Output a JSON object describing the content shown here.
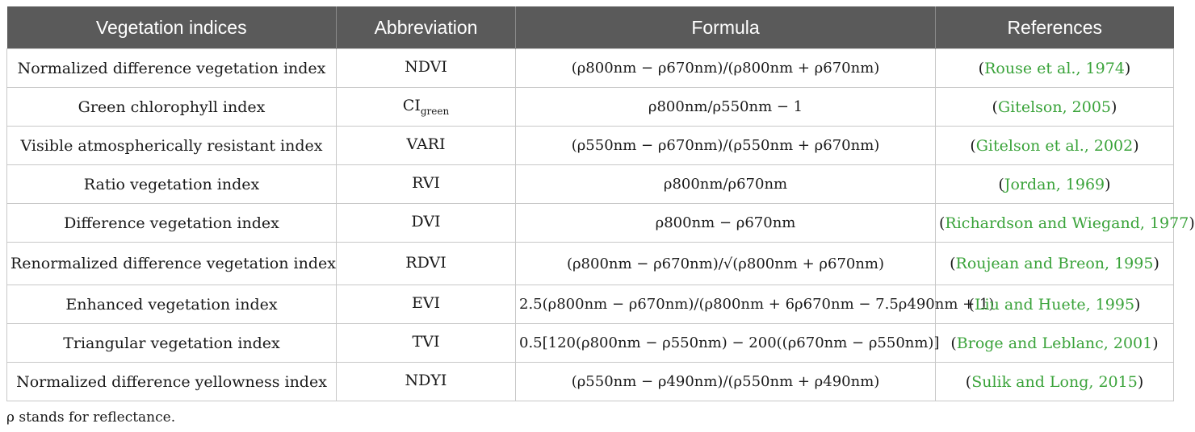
{
  "headers": [
    "Vegetation indices",
    "Abbreviation",
    "Formula",
    "References"
  ],
  "rows": [
    {
      "name": "Normalized difference vegetation index",
      "abbr": "NDVI",
      "abbr_sub": "",
      "formula": "(ρ800nm − ρ670nm)/(ρ800nm + ρ670nm)",
      "ref": "Rouse et al., 1974"
    },
    {
      "name": "Green chlorophyll index",
      "abbr": "CI",
      "abbr_sub": "green",
      "formula": "ρ800nm/ρ550nm − 1",
      "ref": "Gitelson, 2005"
    },
    {
      "name": "Visible atmospherically resistant index",
      "abbr": "VARI",
      "abbr_sub": "",
      "formula": "(ρ550nm − ρ670nm)/(ρ550nm + ρ670nm)",
      "ref": "Gitelson et al., 2002"
    },
    {
      "name": "Ratio vegetation index",
      "abbr": "RVI",
      "abbr_sub": "",
      "formula": "ρ800nm/ρ670nm",
      "ref": "Jordan, 1969"
    },
    {
      "name": "Difference vegetation index",
      "abbr": "DVI",
      "abbr_sub": "",
      "formula": "ρ800nm − ρ670nm",
      "ref": "Richardson and Wiegand, 1977"
    },
    {
      "name": "Renormalized difference vegetation index",
      "abbr": "RDVI",
      "abbr_sub": "",
      "formula": "(ρ800nm − ρ670nm)/√(ρ800nm + ρ670nm)",
      "ref": "Roujean and Breon, 1995"
    },
    {
      "name": "Enhanced vegetation index",
      "abbr": "EVI",
      "abbr_sub": "",
      "formula": "2.5(ρ800nm − ρ670nm)/(ρ800nm + 6ρ670nm − 7.5ρ490nm + 1)",
      "ref": "Liu and Huete, 1995"
    },
    {
      "name": "Triangular vegetation index",
      "abbr": "TVI",
      "abbr_sub": "",
      "formula": "0.5[120(ρ800nm − ρ550nm) − 200((ρ670nm − ρ550nm)]",
      "ref": "Broge and Leblanc, 2001"
    },
    {
      "name": "Normalized difference yellowness index",
      "abbr": "NDYI",
      "abbr_sub": "",
      "formula": "(ρ550nm − ρ490nm)/(ρ550nm + ρ490nm)",
      "ref": "Sulik and Long, 2015"
    }
  ],
  "note": "ρ stands for reflectance.",
  "colors": {
    "header_bg": "#5a5a5a",
    "reference_link": "#3aa33a"
  }
}
